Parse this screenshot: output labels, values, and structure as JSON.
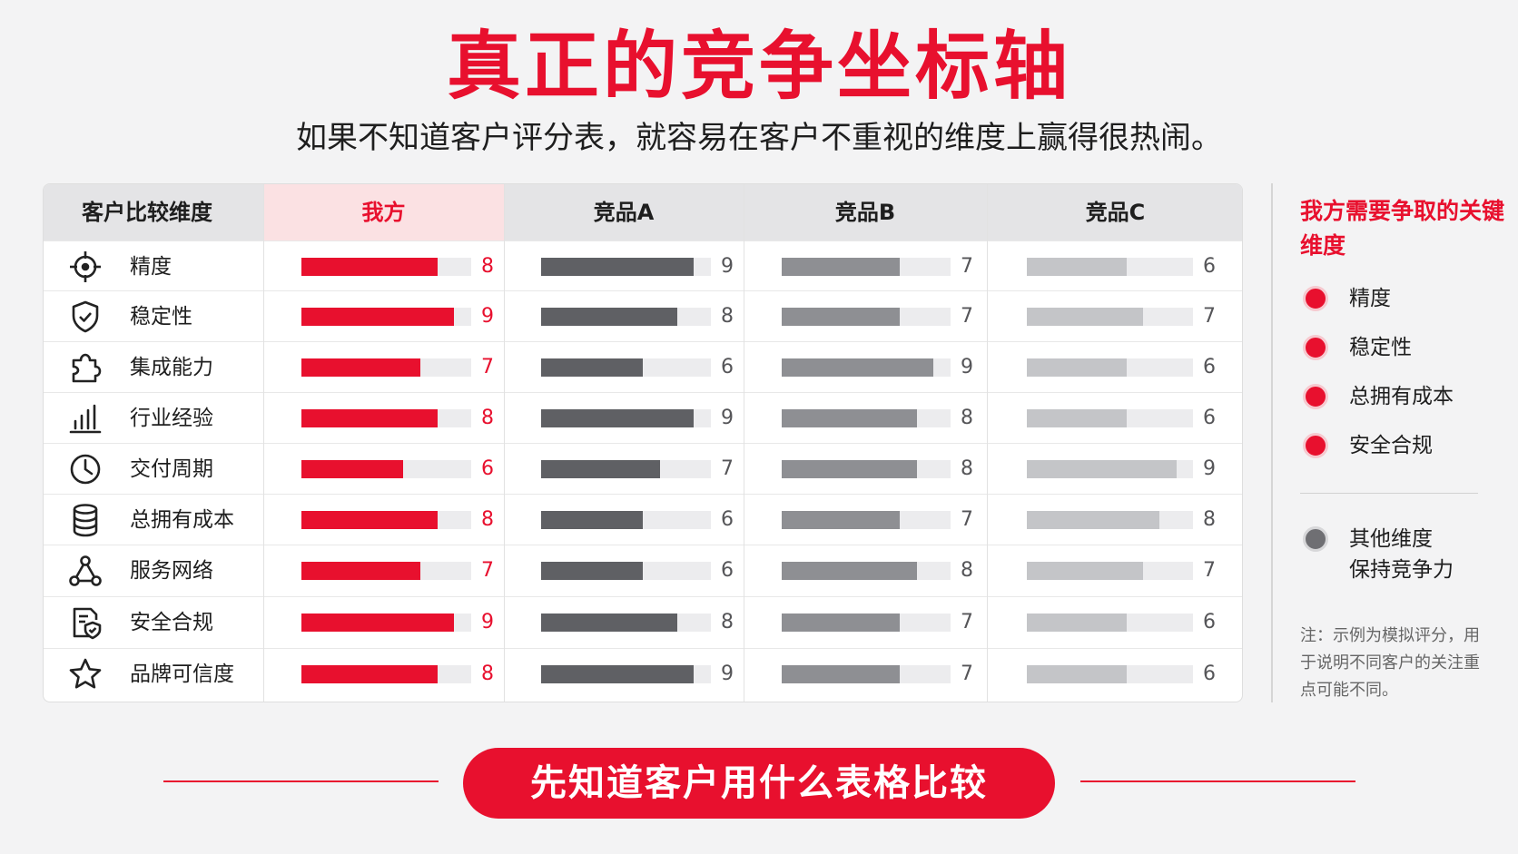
{
  "title": "真正的竞争坐标轴",
  "subtitle": "如果不知道客户评分表，就容易在客户不重视的维度上赢得很热闹。",
  "table": {
    "dimension_header": "客户比较维度",
    "columns": [
      "我方",
      "竞品A",
      "竞品B",
      "竞品C"
    ]
  },
  "chart_data": {
    "type": "bar",
    "categories": [
      "精度",
      "稳定性",
      "集成能力",
      "行业经验",
      "交付周期",
      "总拥有成本",
      "服务网络",
      "安全合规",
      "品牌可信度"
    ],
    "category_icons": [
      "crosshair-icon",
      "shield-check-icon",
      "puzzle-icon",
      "bar-chart-icon",
      "clock-icon",
      "coin-stack-icon",
      "network-icon",
      "document-shield-icon",
      "star-icon"
    ],
    "series": [
      {
        "name": "我方",
        "values": [
          8,
          9,
          7,
          8,
          6,
          8,
          7,
          9,
          8
        ],
        "color": "#e8102e"
      },
      {
        "name": "竞品A",
        "values": [
          9,
          8,
          6,
          9,
          7,
          6,
          6,
          8,
          9
        ],
        "color": "#5f6064"
      },
      {
        "name": "竞品B",
        "values": [
          7,
          7,
          9,
          8,
          8,
          7,
          8,
          7,
          7
        ],
        "color": "#8e8f93"
      },
      {
        "name": "竞品C",
        "values": [
          6,
          7,
          6,
          6,
          9,
          8,
          7,
          6,
          6
        ],
        "color": "#c4c5c8"
      }
    ],
    "xlim": [
      0,
      10
    ],
    "track_color": "#ececee"
  },
  "sidebar": {
    "title": "我方需要争取的关键维度",
    "key_items": [
      "精度",
      "稳定性",
      "总拥有成本",
      "安全合规"
    ],
    "other_line1": "其他维度",
    "other_line2": "保持竞争力",
    "note": "注：示例为模拟评分，用于说明不同客户的关注重点可能不同。"
  },
  "cta_label": "先知道客户用什么表格比较",
  "colors": {
    "accent": "#e8102e",
    "background": "#f3f3f4"
  }
}
